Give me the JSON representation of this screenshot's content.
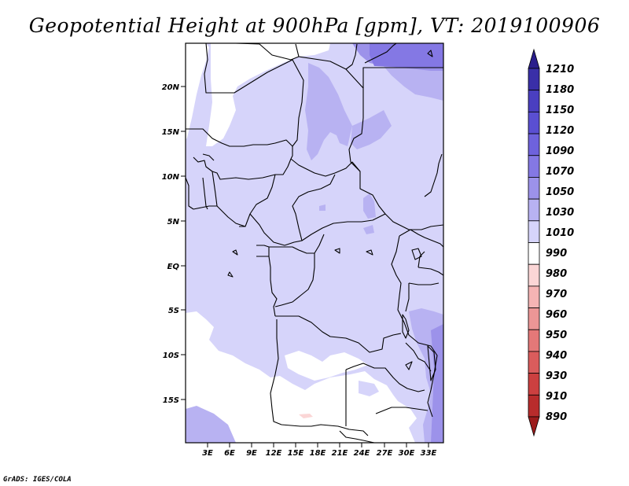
{
  "title": "Geopotential Height at 900hPa [gpm], VT: 2019100906",
  "credit": "GrADS: IGES/COLA",
  "lat_ticks": [
    "20N",
    "15N",
    "10N",
    "5N",
    "EQ",
    "5S",
    "10S",
    "15S"
  ],
  "lon_ticks": [
    "3E",
    "6E",
    "9E",
    "12E",
    "15E",
    "18E",
    "21E",
    "24E",
    "27E",
    "30E",
    "33E"
  ],
  "colorbar": {
    "levels": [
      "1210",
      "1180",
      "1150",
      "1120",
      "1090",
      "1070",
      "1050",
      "1030",
      "1010",
      "990",
      "980",
      "970",
      "960",
      "950",
      "940",
      "930",
      "910",
      "890"
    ],
    "colors": [
      "#2a1e8c",
      "#3a2fa8",
      "#4a3fc0",
      "#5a4fd2",
      "#6e62dc",
      "#8478e4",
      "#9c92ea",
      "#b8b2f2",
      "#d6d4fa",
      "#ffffff",
      "#fbd6d6",
      "#f5b4b4",
      "#ec9696",
      "#e47878",
      "#da5c5c",
      "#cc4040",
      "#b82c2c",
      "#9c1c1c"
    ]
  },
  "field_colors": {
    "base": "#d6d4fa",
    "mid": "#b8b2f2",
    "high": "#9c92ea",
    "highest": "#8478e4",
    "low": "#ffffff",
    "lowest": "#fbd6d6"
  }
}
